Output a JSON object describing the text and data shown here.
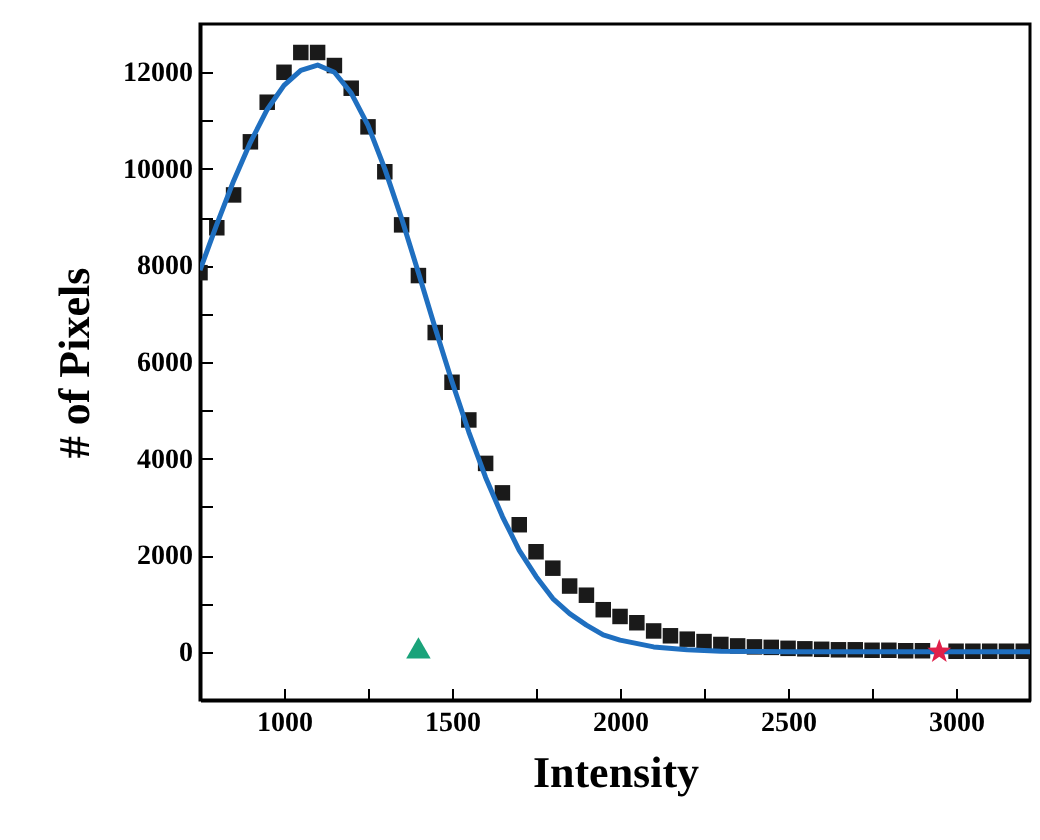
{
  "chart_data": {
    "type": "scatter",
    "xlabel": "Intensity",
    "ylabel": "# of Pixels",
    "xlim": [
      750,
      3220
    ],
    "ylim": [
      -1000,
      13000
    ],
    "xticks": [
      {
        "value": 750,
        "label": null
      },
      1000,
      {
        "value": 1250,
        "label": null
      },
      1500,
      {
        "value": 1750,
        "label": null
      },
      2000,
      {
        "value": 2250,
        "label": null
      },
      2500,
      {
        "value": 2750,
        "label": null
      },
      3000
    ],
    "yticks": [
      {
        "value": -1000,
        "label": null
      },
      0,
      {
        "value": 1000,
        "label": null
      },
      2000,
      {
        "value": 3000,
        "label": null
      },
      4000,
      {
        "value": 5000,
        "label": null
      },
      6000,
      {
        "value": 7000,
        "label": null
      },
      8000,
      {
        "value": 9000,
        "label": null
      },
      10000,
      {
        "value": 11000,
        "label": null
      },
      12000
    ],
    "grid": false,
    "series": [
      {
        "marker": "square",
        "color": "#1a1a1a",
        "x": [
          750,
          800,
          850,
          900,
          950,
          1000,
          1050,
          1100,
          1150,
          1200,
          1250,
          1300,
          1350,
          1400,
          1450,
          1500,
          1550,
          1600,
          1650,
          1700,
          1750,
          1800,
          1850,
          1900,
          1950,
          2000,
          2050,
          2100,
          2150,
          2200,
          2250,
          2300,
          2350,
          2400,
          2450,
          2500,
          2550,
          2600,
          2650,
          2700,
          2750,
          2800,
          2850,
          2900,
          2950,
          3000,
          3050,
          3100,
          3150,
          3200
        ],
        "values": [
          7850,
          8780,
          9460,
          10560,
          11380,
          12000,
          12410,
          12410,
          12140,
          11670,
          10870,
          9940,
          8840,
          7790,
          6610,
          5580,
          4800,
          3900,
          3290,
          2630,
          2070,
          1730,
          1360,
          1170,
          870,
          730,
          600,
          430,
          330,
          260,
          210,
          150,
          120,
          100,
          90,
          70,
          60,
          50,
          40,
          40,
          30,
          30,
          20,
          20,
          null,
          10,
          10,
          10,
          10,
          10
        ]
      },
      {
        "type": "line",
        "line_style": "solid",
        "color": "#1f6fc0",
        "x": [
          750,
          800,
          850,
          900,
          950,
          1000,
          1050,
          1100,
          1150,
          1200,
          1250,
          1300,
          1350,
          1400,
          1450,
          1500,
          1550,
          1600,
          1650,
          1700,
          1750,
          1800,
          1850,
          1900,
          1950,
          2000,
          2100,
          2200,
          2300,
          2500,
          3220
        ],
        "values": [
          7900,
          8850,
          9750,
          10550,
          11230,
          11730,
          12040,
          12150,
          12000,
          11570,
          10900,
          10000,
          8970,
          7850,
          6700,
          5590,
          4550,
          3610,
          2800,
          2100,
          1560,
          1100,
          790,
          550,
          350,
          240,
          100,
          40,
          10,
          0,
          0
        ]
      },
      {
        "marker": "triangle",
        "color": "#1aa37a",
        "x": [
          1400
        ],
        "values": [
          80
        ]
      },
      {
        "marker": "star",
        "color": "#e0204a",
        "x": [
          2950
        ],
        "values": [
          0
        ]
      }
    ]
  }
}
